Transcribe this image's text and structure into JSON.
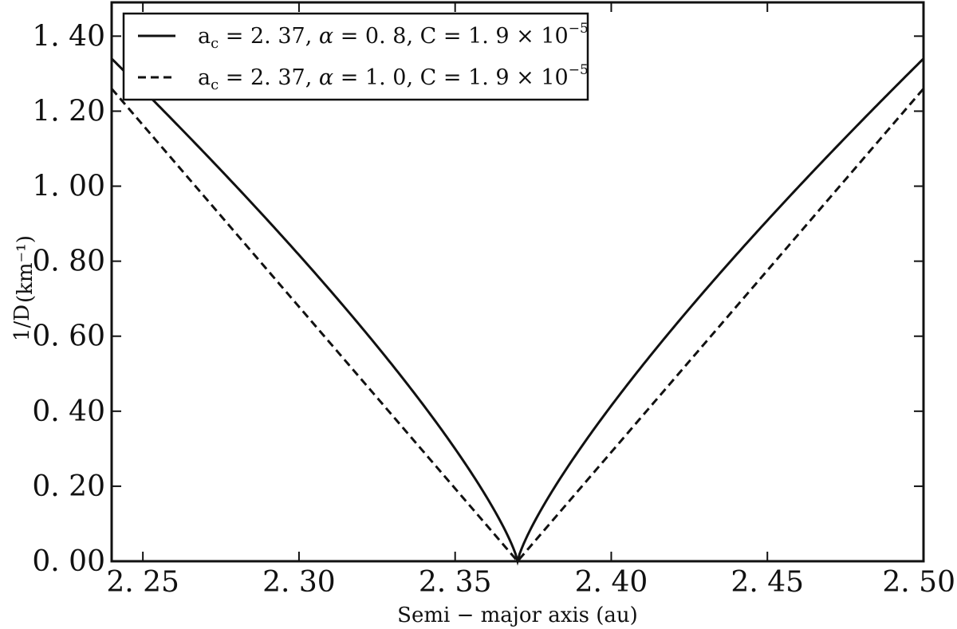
{
  "chart_data": {
    "type": "line",
    "xlabel": "Semi − major axis (au)",
    "ylabel_prefix": "1/D",
    "ylabel": "(km⁻¹)",
    "xlim": [
      2.24,
      2.5
    ],
    "ylim": [
      0.0,
      1.49
    ],
    "x_ticks": [
      2.25,
      2.3,
      2.35,
      2.4,
      2.45,
      2.5
    ],
    "x_tick_labels": [
      "2. 25",
      "2. 30",
      "2. 35",
      "2. 40",
      "2. 45",
      "2. 50"
    ],
    "y_ticks": [
      0.0,
      0.2,
      0.4,
      0.6,
      0.8,
      1.0,
      1.2,
      1.4
    ],
    "y_tick_labels": [
      "0. 00",
      "0. 20",
      "0. 40",
      "0. 60",
      "0. 80",
      "1. 00",
      "1. 20",
      "1. 40"
    ],
    "grid": false,
    "legend_position": "top-left",
    "series": [
      {
        "name": "a_c = 2. 37,  α = 0. 8,  C = 1. 9 × 10⁻⁵",
        "legend": {
          "ac": "2. 37,",
          "alpha": "0. 8,",
          "C": "1. 9 × 10",
          "exp": "−5"
        },
        "style": "solid",
        "a_c": 2.37,
        "alpha": 0.8,
        "C": 1.9e-05,
        "x": [
          2.24,
          2.26,
          2.28,
          2.3,
          2.32,
          2.34,
          2.36,
          2.37,
          2.38,
          2.4,
          2.42,
          2.44,
          2.46,
          2.48,
          2.5
        ],
        "y": [
          1.34,
          1.12,
          0.92,
          0.71,
          0.5,
          0.31,
          0.1,
          0.0,
          0.1,
          0.31,
          0.5,
          0.71,
          0.92,
          1.12,
          1.34
        ]
      },
      {
        "name": "a_c = 2. 37,  α = 1. 0,  C = 1. 9 × 10⁻⁵",
        "legend": {
          "ac": "2. 37,",
          "alpha": "1. 0,",
          "C": "1. 9 × 10",
          "exp": "−5"
        },
        "style": "dashed",
        "a_c": 2.37,
        "alpha": 1.0,
        "C": 1.9e-05,
        "x": [
          2.24,
          2.27,
          2.3,
          2.33,
          2.37,
          2.41,
          2.44,
          2.47,
          2.5
        ],
        "y": [
          1.26,
          0.97,
          0.68,
          0.39,
          0.0,
          0.39,
          0.68,
          0.97,
          1.26
        ]
      }
    ]
  }
}
